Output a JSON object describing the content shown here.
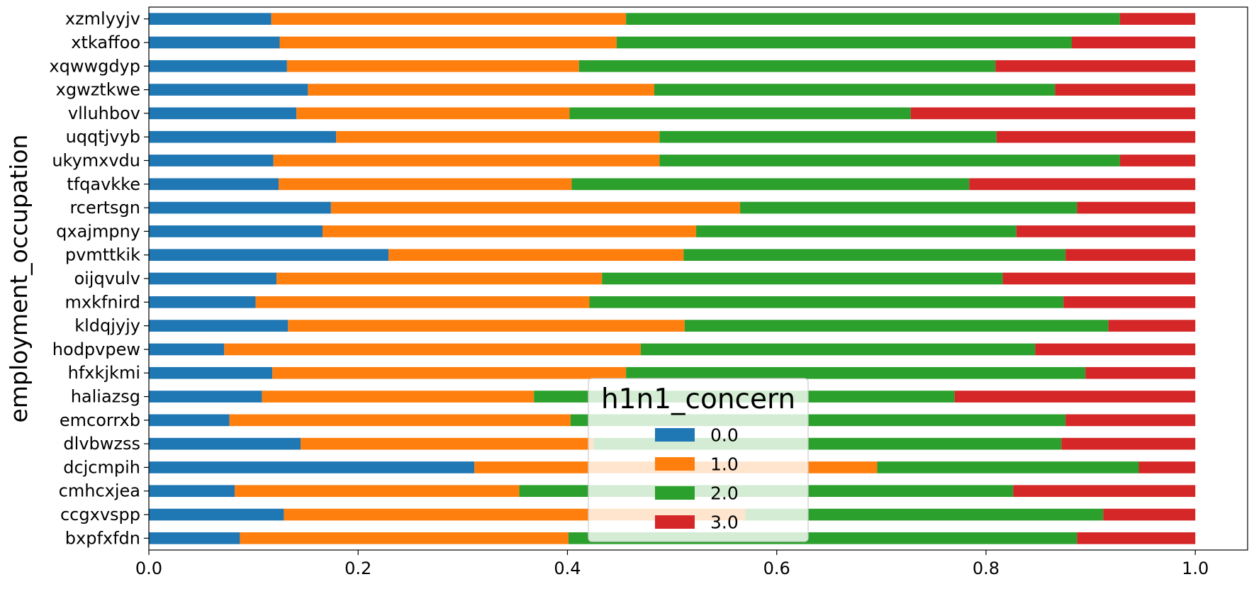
{
  "chart_data": {
    "type": "bar",
    "orientation": "horizontal",
    "stacked": true,
    "ylabel": "employment_occupation",
    "xlabel": "",
    "xlim": [
      0.0,
      1.05
    ],
    "xticks": [
      "0.0",
      "0.2",
      "0.4",
      "0.6",
      "0.8",
      "1.0"
    ],
    "xtick_values": [
      0.0,
      0.2,
      0.4,
      0.6,
      0.8,
      1.0
    ],
    "grid": false,
    "legend": {
      "title": "h1n1_concern",
      "placement": "lower-center"
    },
    "categories": [
      "bxpfxfdn",
      "ccgxvspp",
      "cmhcxjea",
      "dcjcmpih",
      "dlvbwzss",
      "emcorrxb",
      "haliazsg",
      "hfxkjkmi",
      "hodpvpew",
      "kldqjyjy",
      "mxkfnird",
      "oijqvulv",
      "pvmttkik",
      "qxajmpny",
      "rcertsgn",
      "tfqavkke",
      "ukymxvdu",
      "uqqtjvyb",
      "vlluhbov",
      "xgwztkwe",
      "xqwwgdyp",
      "xtkaffoo",
      "xzmlyyjv"
    ],
    "series": [
      {
        "name": "0.0",
        "color": "#1f77b4",
        "values": [
          0.087,
          0.129,
          0.082,
          0.311,
          0.145,
          0.077,
          0.108,
          0.118,
          0.072,
          0.133,
          0.102,
          0.122,
          0.229,
          0.166,
          0.174,
          0.124,
          0.119,
          0.179,
          0.141,
          0.152,
          0.132,
          0.125,
          0.117
        ]
      },
      {
        "name": "1.0",
        "color": "#ff7f0e",
        "values": [
          0.314,
          0.441,
          0.272,
          0.385,
          0.28,
          0.326,
          0.26,
          0.338,
          0.398,
          0.379,
          0.319,
          0.311,
          0.282,
          0.357,
          0.391,
          0.28,
          0.369,
          0.309,
          0.261,
          0.331,
          0.279,
          0.322,
          0.339
        ]
      },
      {
        "name": "2.0",
        "color": "#2ca02c",
        "values": [
          0.486,
          0.342,
          0.472,
          0.25,
          0.447,
          0.473,
          0.402,
          0.439,
          0.377,
          0.405,
          0.453,
          0.383,
          0.365,
          0.306,
          0.322,
          0.38,
          0.44,
          0.322,
          0.326,
          0.383,
          0.398,
          0.435,
          0.472
        ]
      },
      {
        "name": "3.0",
        "color": "#d62728",
        "values": [
          0.113,
          0.088,
          0.174,
          0.054,
          0.128,
          0.124,
          0.23,
          0.105,
          0.153,
          0.083,
          0.126,
          0.184,
          0.124,
          0.171,
          0.113,
          0.216,
          0.072,
          0.19,
          0.272,
          0.134,
          0.191,
          0.118,
          0.072
        ]
      }
    ]
  }
}
